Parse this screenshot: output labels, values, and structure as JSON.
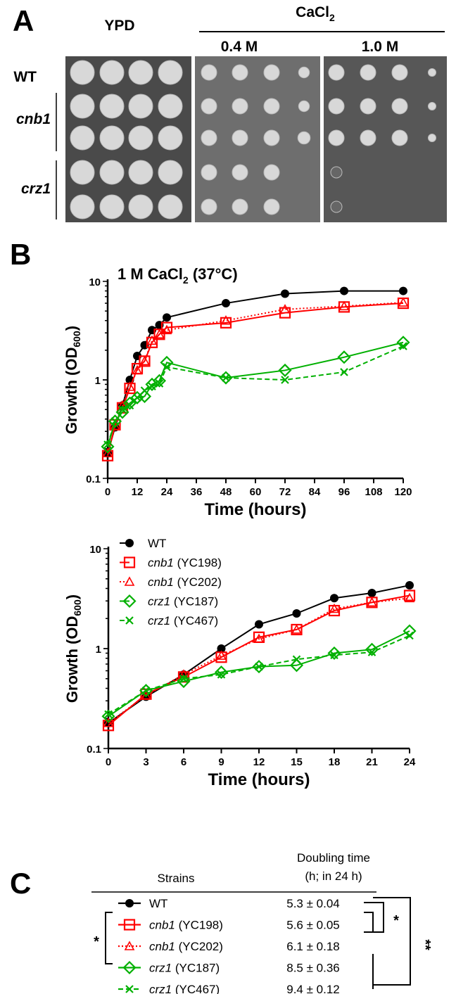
{
  "panel_a": {
    "letter": "A",
    "ypd_label": "YPD",
    "cacl2_label": "CaCl",
    "cacl2_sub": "2",
    "conc_low": "0.4 M",
    "conc_high": "1.0 M",
    "rows": [
      {
        "label": "WT",
        "group": "WT"
      },
      {
        "label": "cnb1",
        "group": "cnb1"
      },
      {
        "label": "",
        "group": "cnb1"
      },
      {
        "label": "crz1",
        "group": "crz1"
      },
      {
        "label": "",
        "group": "crz1"
      }
    ],
    "growth": {
      "YPD": [
        [
          1,
          1,
          1,
          1
        ],
        [
          1,
          1,
          1,
          1
        ],
        [
          1,
          1,
          1,
          1
        ],
        [
          1,
          1,
          1,
          1
        ],
        [
          1,
          1,
          1,
          1
        ]
      ],
      "0.4 M": [
        [
          1,
          1,
          1,
          0.7
        ],
        [
          1,
          1,
          1,
          0.7
        ],
        [
          1,
          1,
          1,
          0.8
        ],
        [
          1,
          1,
          1,
          0
        ],
        [
          1,
          1,
          1,
          0
        ]
      ],
      "1.0 M": [
        [
          1,
          1,
          1,
          0.5
        ],
        [
          1,
          1,
          1,
          0.3
        ],
        [
          1,
          1,
          1,
          0.3
        ],
        [
          0.1,
          0,
          0,
          0
        ],
        [
          0.1,
          0,
          0,
          0
        ]
      ]
    }
  },
  "panel_b": {
    "letter": "B"
  },
  "chart_data": [
    {
      "type": "line",
      "title": "1 M CaCl",
      "title_sub": "2",
      "title_suffix": " (37°C)",
      "xlabel": "Time (hours)",
      "ylabel": "Growth (OD",
      "ylabel_sub": "600",
      "ylabel_end": ")",
      "yscale": "log",
      "ylim": [
        0.1,
        10
      ],
      "xlim": [
        0,
        120
      ],
      "xticks": [
        "0",
        "12",
        "24",
        "36",
        "48",
        "60",
        "72",
        "84",
        "96",
        "108",
        "120"
      ],
      "yticks": [
        "0.1",
        "1",
        "10"
      ],
      "x": [
        0,
        3,
        6,
        9,
        12,
        15,
        18,
        21,
        24,
        48,
        72,
        96,
        120
      ],
      "series": [
        {
          "name": "WT",
          "values": [
            0.18,
            0.33,
            0.55,
            1.0,
            1.75,
            2.25,
            3.2,
            3.6,
            4.3,
            6.0,
            7.5,
            8.0,
            8.0
          ]
        },
        {
          "name": "cnb1 (YC198)",
          "values": [
            0.17,
            0.35,
            0.52,
            0.82,
            1.3,
            1.55,
            2.4,
            2.9,
            3.4,
            3.8,
            4.8,
            5.5,
            6.0
          ]
        },
        {
          "name": "cnb1 (YC202)",
          "values": [
            0.18,
            0.34,
            0.55,
            0.85,
            1.25,
            1.55,
            2.5,
            2.9,
            3.2,
            4.0,
            5.2,
            5.6,
            6.1
          ]
        },
        {
          "name": "crz1 (YC187)",
          "values": [
            0.21,
            0.38,
            0.47,
            0.58,
            0.66,
            0.68,
            0.9,
            0.98,
            1.5,
            1.05,
            1.25,
            1.7,
            2.4
          ]
        },
        {
          "name": "crz1 (YC467)",
          "values": [
            0.22,
            0.38,
            0.5,
            0.55,
            0.66,
            0.78,
            0.86,
            0.92,
            1.35,
            1.05,
            1.0,
            1.2,
            2.2
          ]
        }
      ]
    },
    {
      "type": "line",
      "xlabel": "Time (hours)",
      "ylabel": "Growth (OD",
      "ylabel_sub": "600",
      "ylabel_end": ")",
      "yscale": "log",
      "ylim": [
        0.1,
        10
      ],
      "xlim": [
        0,
        24
      ],
      "xticks": [
        "0",
        "3",
        "6",
        "9",
        "12",
        "15",
        "18",
        "21",
        "24"
      ],
      "yticks": [
        "0.1",
        "1",
        "10"
      ],
      "legend": "top-left",
      "x": [
        0,
        3,
        6,
        9,
        12,
        15,
        18,
        21,
        24
      ],
      "series": [
        {
          "name": "WT",
          "strain": "",
          "values": [
            0.18,
            0.33,
            0.55,
            1.0,
            1.75,
            2.25,
            3.2,
            3.6,
            4.3
          ]
        },
        {
          "name": "cnb1",
          "strain": " (YC198)",
          "values": [
            0.17,
            0.35,
            0.52,
            0.82,
            1.3,
            1.55,
            2.4,
            2.9,
            3.4
          ]
        },
        {
          "name": "cnb1",
          "strain": " (YC202)",
          "values": [
            0.18,
            0.34,
            0.55,
            0.85,
            1.25,
            1.55,
            2.5,
            2.9,
            3.2
          ]
        },
        {
          "name": "crz1",
          "strain": " (YC187)",
          "values": [
            0.21,
            0.38,
            0.47,
            0.58,
            0.66,
            0.68,
            0.9,
            0.98,
            1.5
          ]
        },
        {
          "name": "crz1",
          "strain": " (YC467)",
          "values": [
            0.22,
            0.38,
            0.5,
            0.55,
            0.66,
            0.78,
            0.86,
            0.92,
            1.35
          ]
        }
      ]
    }
  ],
  "series_style": [
    {
      "color": "#000000",
      "marker": "circle",
      "dash": ""
    },
    {
      "color": "#ff0000",
      "marker": "square",
      "dash": ""
    },
    {
      "color": "#ff0000",
      "marker": "triangle",
      "dash": "2,3"
    },
    {
      "color": "#00b000",
      "marker": "diamond",
      "dash": ""
    },
    {
      "color": "#00b000",
      "marker": "x",
      "dash": "7,4"
    }
  ],
  "panel_c": {
    "letter": "C",
    "col_strains": "Strains",
    "col_dt_1": "Doubling time",
    "col_dt_2": "(h; in 24 h)",
    "rows": [
      {
        "name": "WT",
        "strain": "",
        "value": "5.3 ± 0.04"
      },
      {
        "name": "cnb1",
        "strain": " (YC198)",
        "value": "5.6 ± 0.05"
      },
      {
        "name": "cnb1",
        "strain": " (YC202)",
        "value": "6.1 ± 0.18"
      },
      {
        "name": "crz1",
        "strain": "  (YC187)",
        "value": "8.5 ± 0.36"
      },
      {
        "name": "crz1",
        "strain": "  (YC467)",
        "value": "9.4 ± 0.12"
      }
    ],
    "sig_left": "*",
    "sig_mid": "*",
    "sig_right": "**"
  }
}
